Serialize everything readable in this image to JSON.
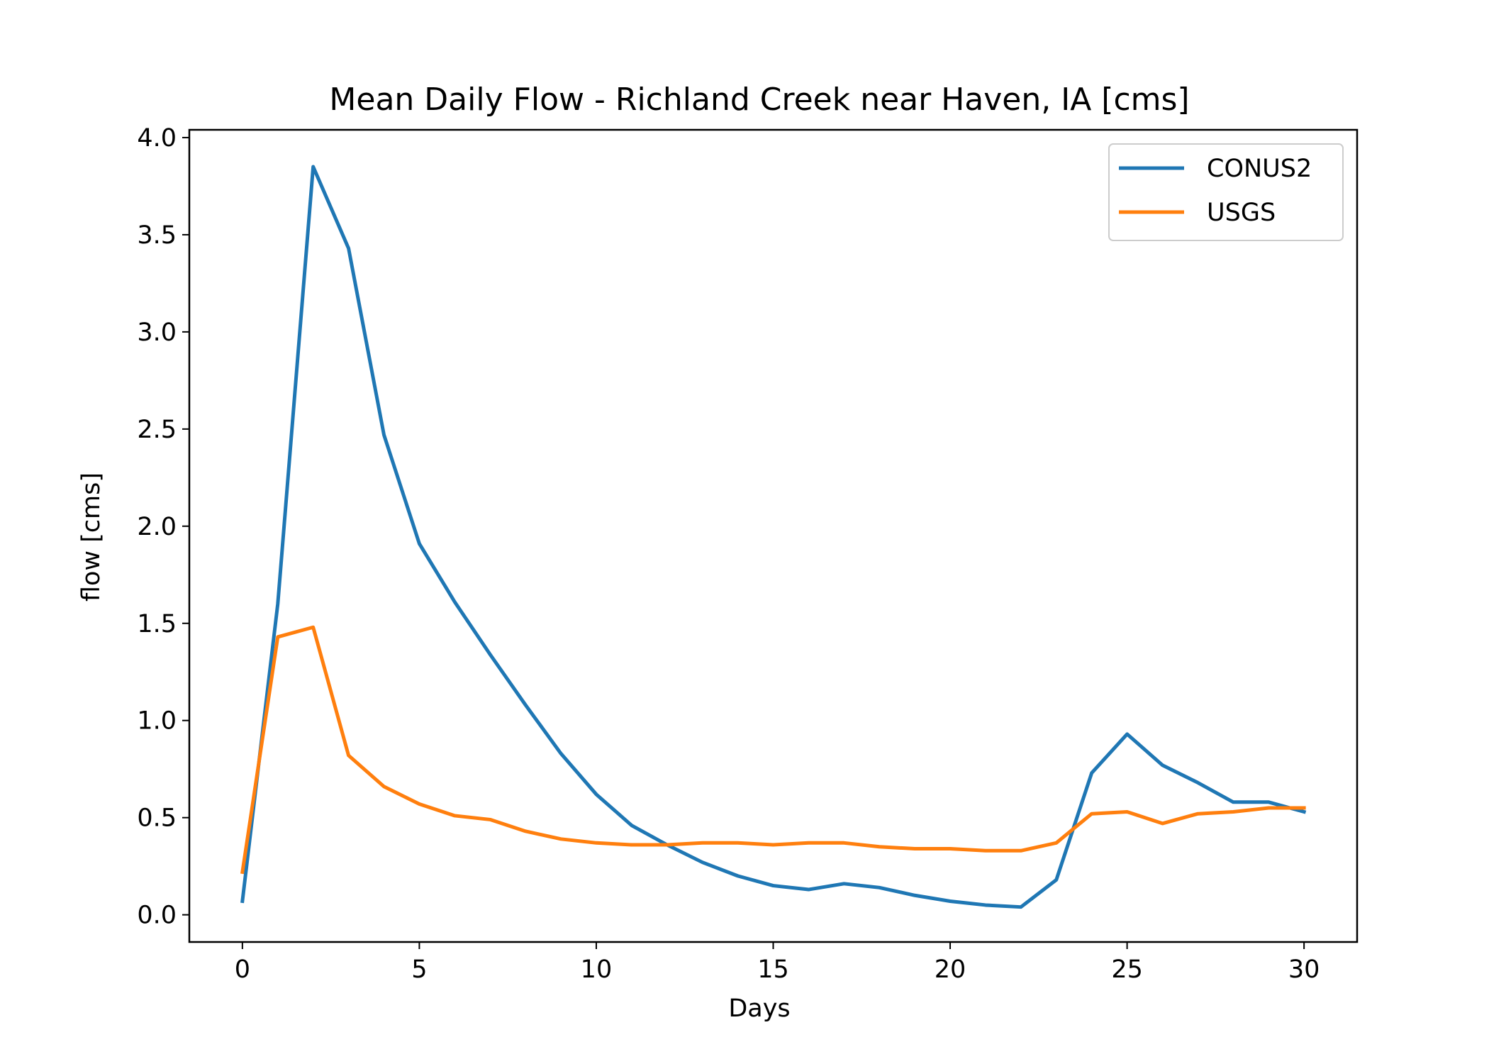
{
  "chart_data": {
    "type": "line",
    "title": "Mean Daily Flow - Richland Creek near Haven, IA [cms]",
    "xlabel": "Days",
    "ylabel": "flow [cms]",
    "xlim": [
      -1.5,
      31.5
    ],
    "ylim": [
      -0.14,
      4.04
    ],
    "xticks": [
      0,
      5,
      10,
      15,
      20,
      25,
      30
    ],
    "yticks": [
      0.0,
      0.5,
      1.0,
      1.5,
      2.0,
      2.5,
      3.0,
      3.5,
      4.0
    ],
    "xtick_labels": [
      "0",
      "5",
      "10",
      "15",
      "20",
      "25",
      "30"
    ],
    "ytick_labels": [
      "0.0",
      "0.5",
      "1.0",
      "1.5",
      "2.0",
      "2.5",
      "3.0",
      "3.5",
      "4.0"
    ],
    "grid": false,
    "legend_position": "top-right",
    "x": [
      0,
      1,
      2,
      3,
      4,
      5,
      6,
      7,
      8,
      9,
      10,
      11,
      12,
      13,
      14,
      15,
      16,
      17,
      18,
      19,
      20,
      21,
      22,
      23,
      24,
      25,
      26,
      27,
      28,
      29,
      30
    ],
    "series": [
      {
        "name": "CONUS2",
        "color": "#1f77b4",
        "values": [
          0.07,
          1.6,
          3.85,
          3.43,
          2.47,
          1.91,
          1.61,
          1.34,
          1.08,
          0.83,
          0.62,
          0.46,
          0.36,
          0.27,
          0.2,
          0.15,
          0.13,
          0.16,
          0.14,
          0.1,
          0.07,
          0.05,
          0.04,
          0.18,
          0.73,
          0.93,
          0.77,
          0.68,
          0.58,
          0.58,
          0.53
        ]
      },
      {
        "name": "USGS",
        "color": "#ff7f0e",
        "values": [
          0.22,
          1.43,
          1.48,
          0.82,
          0.66,
          0.57,
          0.51,
          0.49,
          0.43,
          0.39,
          0.37,
          0.36,
          0.36,
          0.37,
          0.37,
          0.36,
          0.37,
          0.37,
          0.35,
          0.34,
          0.34,
          0.33,
          0.33,
          0.37,
          0.52,
          0.53,
          0.47,
          0.52,
          0.53,
          0.55,
          0.55
        ]
      }
    ]
  }
}
